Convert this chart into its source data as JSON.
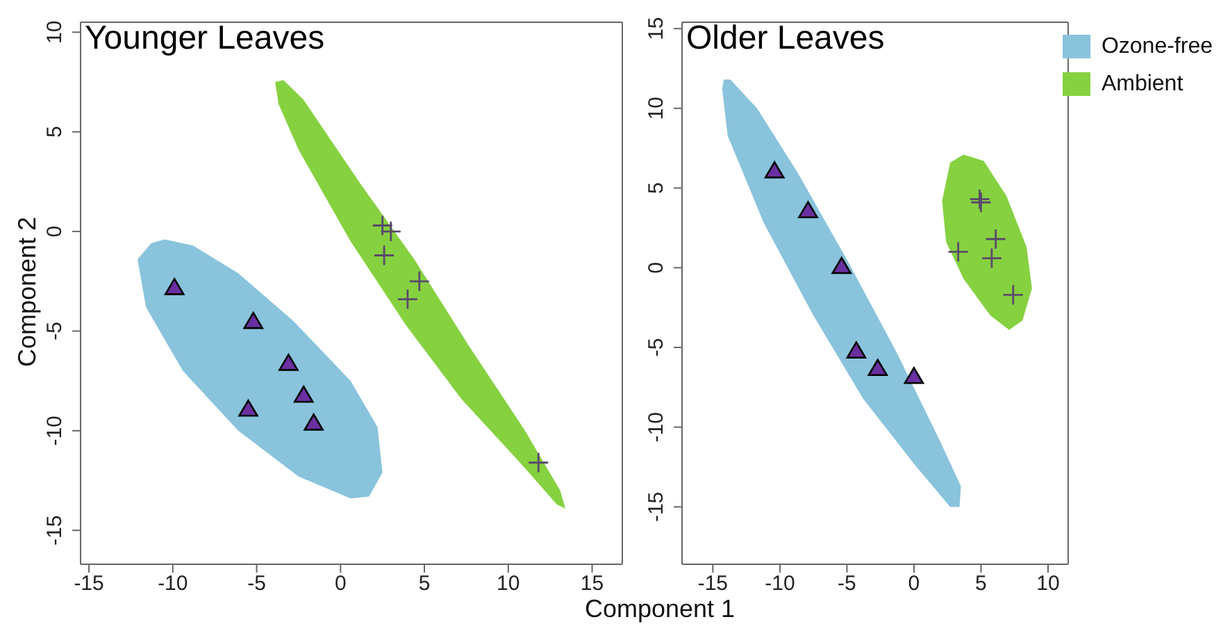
{
  "chart_data": [
    {
      "type": "scatter",
      "title": "Younger Leaves",
      "xlabel": "Component 1",
      "ylabel": "Component 2",
      "xlim": [
        -15.5,
        16.8
      ],
      "ylim": [
        -16.7,
        10.5
      ],
      "xticks": [
        -15,
        -10,
        -5,
        0,
        5,
        10,
        15
      ],
      "yticks": [
        -15,
        -10,
        -5,
        0,
        5,
        10
      ],
      "legend": false,
      "series": [
        {
          "type": "area",
          "color": "#89c3dc",
          "x": [
            -12.1,
            -11.3,
            -10.5,
            -8.8,
            -6.1,
            -2.8,
            0.6,
            2.2,
            2.5,
            1.7,
            0.6,
            -2.5,
            -6.1,
            -9.4,
            -11.6
          ],
          "values": [
            -1.4,
            -0.6,
            -0.4,
            -0.7,
            -2.1,
            -4.5,
            -7.5,
            -9.8,
            -12.1,
            -13.3,
            -13.4,
            -12.3,
            -10.0,
            -7.0,
            -3.8
          ]
        },
        {
          "type": "area",
          "color": "#86d140",
          "x": [
            -3.9,
            -3.4,
            -2.2,
            1.1,
            4.4,
            7.7,
            11.0,
            13.1,
            13.4,
            12.9,
            10.7,
            7.2,
            3.9,
            0.6,
            -2.5,
            -3.7
          ],
          "values": [
            7.5,
            7.6,
            6.6,
            2.5,
            -1.4,
            -5.8,
            -10.0,
            -13.0,
            -13.9,
            -13.7,
            -11.6,
            -8.4,
            -4.7,
            -0.5,
            4.1,
            6.4
          ]
        },
        {
          "type": "scatter",
          "marker": "triangle",
          "color": "#6a2fa0",
          "x": [
            -9.9,
            -5.2,
            -3.1,
            -2.2,
            -5.5,
            -1.6
          ],
          "values": [
            -2.8,
            -4.5,
            -6.6,
            -8.2,
            -8.9,
            -9.6
          ]
        },
        {
          "type": "scatter",
          "marker": "cross",
          "color": "#5a4a6a",
          "x": [
            2.5,
            3.0,
            2.6,
            4.7,
            4.0,
            11.8
          ],
          "values": [
            0.3,
            0.0,
            -1.2,
            -2.5,
            -3.4,
            -11.6
          ]
        }
      ]
    },
    {
      "type": "scatter",
      "title": "Older Leaves",
      "xlim": [
        -17.3,
        11.5
      ],
      "ylim": [
        -18.6,
        15.4
      ],
      "xticks": [
        -15,
        -10,
        -5,
        0,
        5,
        10
      ],
      "yticks": [
        -15,
        -10,
        -5,
        0,
        5,
        10,
        15
      ],
      "legend": "top right",
      "series": [
        {
          "type": "area",
          "name": "Ozone-free",
          "color": "#89c3dc",
          "x": [
            -14.2,
            -13.7,
            -11.7,
            -8.7,
            -5.0,
            -1.3,
            1.9,
            3.5,
            3.4,
            2.7,
            0.0,
            -3.8,
            -7.5,
            -11.2,
            -13.9,
            -14.3
          ],
          "values": [
            11.8,
            11.8,
            10.0,
            6.0,
            0.5,
            -5.3,
            -10.8,
            -13.7,
            -15.0,
            -15.0,
            -12.3,
            -8.2,
            -3.0,
            2.8,
            8.3,
            11.2
          ]
        },
        {
          "type": "area",
          "name": "Ambient",
          "color": "#86d140",
          "x": [
            3.7,
            5.2,
            6.9,
            8.4,
            8.8,
            8.1,
            7.1,
            5.7,
            3.7,
            2.4,
            2.1,
            2.7
          ],
          "values": [
            7.1,
            6.7,
            4.5,
            1.3,
            -1.3,
            -3.3,
            -3.9,
            -3.0,
            -0.7,
            1.6,
            4.2,
            6.6
          ]
        },
        {
          "type": "scatter",
          "marker": "triangle",
          "color": "#6a2fa0",
          "x": [
            -10.4,
            -7.9,
            -5.4,
            -4.3,
            -2.7,
            0.0
          ],
          "values": [
            6.1,
            3.6,
            0.1,
            -5.2,
            -6.3,
            -6.8
          ]
        },
        {
          "type": "scatter",
          "marker": "cross",
          "color": "#5a4a6a",
          "x": [
            4.9,
            5.0,
            6.1,
            3.3,
            5.8,
            7.4
          ],
          "values": [
            4.3,
            4.1,
            1.8,
            1.0,
            0.6,
            -1.7
          ]
        }
      ]
    }
  ]
}
